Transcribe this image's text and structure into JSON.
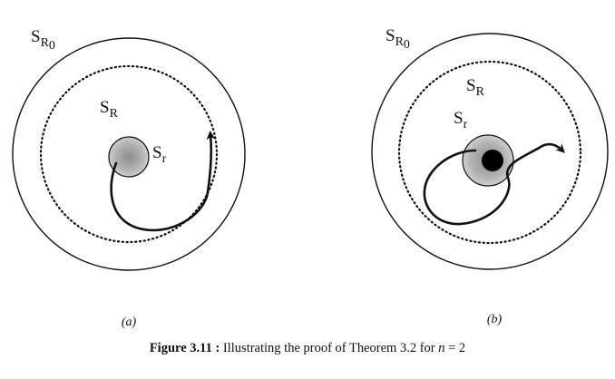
{
  "panels": [
    {
      "id": "a",
      "label": "(a)",
      "outer_label": {
        "base": "S",
        "sub": "R",
        "subsub": "0"
      },
      "middle_label": {
        "base": "S",
        "sub": "R"
      },
      "inner_label": {
        "base": "S",
        "sub": "r"
      },
      "has_center_dot": false
    },
    {
      "id": "b",
      "label": "(b)",
      "outer_label": {
        "base": "S",
        "sub": "R",
        "subsub": "0"
      },
      "middle_label": {
        "base": "S",
        "sub": "R"
      },
      "inner_label": {
        "base": "S",
        "sub": "r"
      },
      "has_center_dot": true
    }
  ],
  "caption": {
    "prefix": "Figure 3.11 :",
    "text": " Illustrating the proof of Theorem 3.2 for ",
    "var": "n",
    "suffix": " = 2"
  },
  "colors": {
    "line": "#111111",
    "shade": "#b8b8b8",
    "dot": "#000000"
  }
}
